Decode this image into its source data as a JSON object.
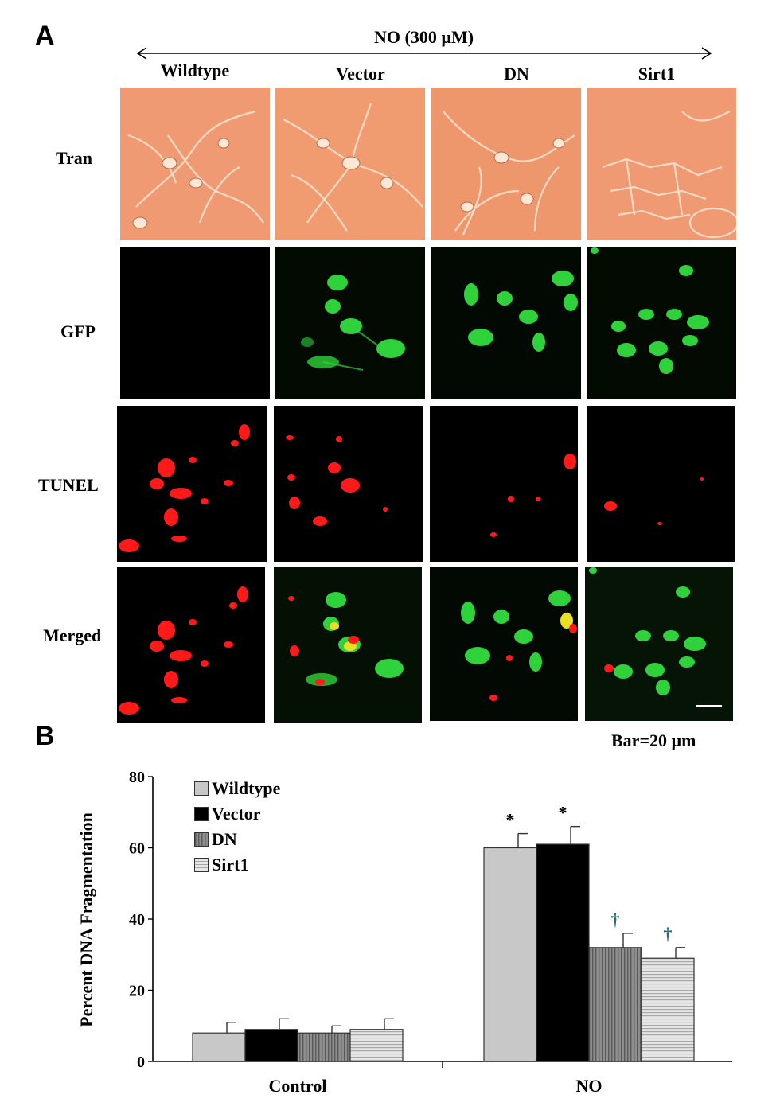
{
  "panel_a": {
    "letter": "A",
    "treatment_label": "NO (300 µM)",
    "columns": [
      "Wildtype",
      "Vector",
      "DN",
      "Sirt1"
    ],
    "rows": [
      "Tran",
      "GFP",
      "TUNEL",
      "Merged"
    ],
    "scale_bar_label": "Bar=20 µm"
  },
  "panel_b": {
    "letter": "B"
  },
  "colors": {
    "tran_bg": "#ef9a72",
    "gfp": "#2fd23a",
    "tunel": "#ff1a1a",
    "wildtype": "#c8c8c8",
    "vector": "#000000",
    "dn": "#8e8e8e",
    "sirt1": "#e6e6e6"
  },
  "chart_data": {
    "type": "bar",
    "categories": [
      "Control",
      "NO"
    ],
    "series": [
      {
        "name": "Wildtype",
        "values": [
          8,
          60
        ],
        "errors": [
          3,
          4
        ],
        "markers": [
          "",
          "*"
        ]
      },
      {
        "name": "Vector",
        "values": [
          9,
          61
        ],
        "errors": [
          3,
          5
        ],
        "markers": [
          "",
          "*"
        ]
      },
      {
        "name": "DN",
        "values": [
          8,
          32
        ],
        "errors": [
          2,
          4
        ],
        "markers": [
          "",
          "†"
        ]
      },
      {
        "name": "Sirt1",
        "values": [
          9,
          29
        ],
        "errors": [
          3,
          3
        ],
        "markers": [
          "",
          "†"
        ]
      }
    ],
    "ylabel": "Percent DNA Fragmentation",
    "ylim": [
      0,
      80
    ],
    "yticks": [
      "0",
      "20",
      "40",
      "60",
      "80"
    ],
    "legend_position": "top-left",
    "grid": false
  }
}
